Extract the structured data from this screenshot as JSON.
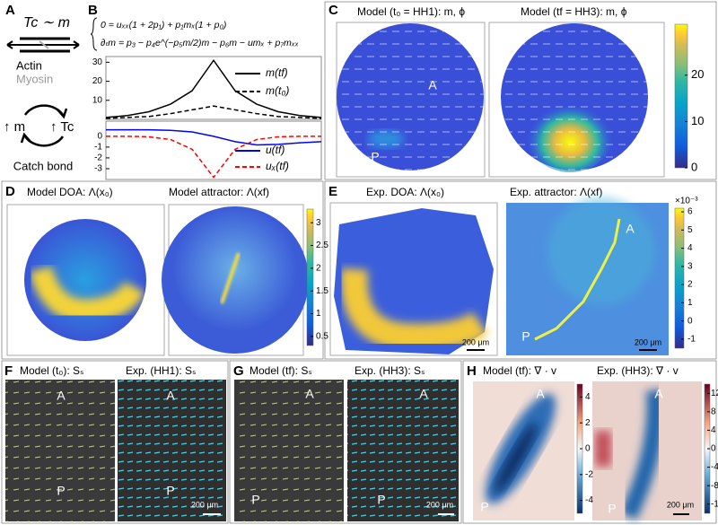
{
  "A": {
    "label": "A",
    "relation": "Tc ∼ m",
    "actin": "Actin",
    "myosin": "Myosin",
    "up_m": "↑ m",
    "up_tc": "↑ Tc",
    "catch_bond": "Catch bond"
  },
  "B": {
    "label": "B",
    "equation_1": "0 = uₓₓ(1 + 2p₁) + p₁mₓ(1 + p₀)",
    "equation_2": "∂ₜm = p₃ − p₄e^(−p₅m/2)m − p₆m − umₓ + p₇mₓₓ",
    "plots": [
      {
        "x": [
          0,
          0.1,
          0.2,
          0.3,
          0.4,
          0.5,
          0.6,
          0.7,
          0.8,
          0.9,
          1
        ],
        "ylim": [
          0,
          33
        ],
        "yticks": [
          10,
          20,
          30
        ],
        "series": [
          {
            "name": "m(tf)",
            "color": "#000000",
            "dash": false,
            "values": [
              1,
              2,
              4,
              8,
              15,
              31,
              15,
              8,
              4,
              2,
              1
            ]
          },
          {
            "name": "m(t₀)",
            "color": "#000000",
            "dash": true,
            "values": [
              0.5,
              1,
              1.5,
              3,
              5,
              7,
              5,
              3,
              1.5,
              1,
              0.5
            ]
          }
        ]
      },
      {
        "x": [
          0,
          0.1,
          0.2,
          0.3,
          0.4,
          0.5,
          0.6,
          0.7,
          0.8,
          0.9,
          1
        ],
        "ylim": [
          -4,
          1.4
        ],
        "yticks": [
          0,
          -1,
          -2,
          -3
        ],
        "series": [
          {
            "name": "u(tf)",
            "color": "#0000ff",
            "dash": false,
            "values": [
              0.6,
              0.6,
              0.6,
              0.55,
              0.4,
              0,
              -0.5,
              -0.8,
              -0.75,
              -0.6,
              -0.5
            ]
          },
          {
            "name": "uₓ(tf)",
            "color": "#ff0000",
            "dash": true,
            "values": [
              0,
              0,
              -0.05,
              -0.3,
              -1.2,
              -3.8,
              -1.2,
              -0.3,
              -0.05,
              0,
              0
            ]
          }
        ]
      }
    ]
  },
  "C": {
    "label": "C",
    "title_1": "Model (t₀ = HH1): m, ϕ",
    "title_2": "Model (tf = HH3): m, ϕ",
    "marker_A": "A",
    "marker_P": "P",
    "colorbar": {
      "ylim": [
        0,
        31
      ],
      "yticks": [
        0,
        10,
        20
      ]
    }
  },
  "D": {
    "label": "D",
    "title_1": "Model DOA: Λ(x₀)",
    "title_2": "Model attractor: Λ(xf)",
    "colorbar": {
      "ylim": [
        0.3,
        3.3
      ],
      "yticks": [
        0.5,
        1,
        1.5,
        2,
        2.5,
        3
      ]
    }
  },
  "E": {
    "label": "E",
    "title_1": "Exp. DOA: Λ(x₀)",
    "title_2": "Exp. attractor: Λ(xf)",
    "scale_1": "200 μm",
    "scale_2": "200 μm",
    "marker_A": "A",
    "marker_P": "P",
    "colorbar": {
      "ylim": [
        -1.5,
        6.2
      ],
      "yticks": [
        -1,
        0,
        1,
        2,
        3,
        4,
        5,
        6
      ],
      "multiplier": "×10⁻³"
    }
  },
  "F": {
    "label": "F",
    "title_1": "Model (t₀): Sₛ",
    "title_2": "Exp. (HH1): Sₛ",
    "marker_A_1": "A",
    "marker_P_1": "P",
    "marker_A_2": "A",
    "marker_P_2": "P",
    "scale": "200 μm"
  },
  "G": {
    "label": "G",
    "title_1": "Model (tf): Sₛ",
    "title_2": "Exp. (HH3): Sₛ",
    "marker_A_1": "A",
    "marker_P_1": "P",
    "marker_A_2": "A",
    "marker_P_2": "P",
    "scale": "200 μm"
  },
  "H": {
    "label": "H",
    "title_1": "Model (tf): ∇ · v",
    "title_2": "Exp. (HH3): ∇ · v",
    "marker_A_1": "A",
    "marker_P_1": "P",
    "marker_A_2": "A",
    "marker_P_2": "P",
    "scale": "200 μm",
    "colorbar_1": {
      "ylim": [
        -5,
        5
      ],
      "yticks": [
        4,
        2,
        0,
        -2,
        -4
      ]
    },
    "colorbar_2": {
      "ylim": [
        -14,
        14
      ],
      "yticks": [
        12,
        8,
        4,
        0,
        -4,
        -8,
        -12
      ]
    }
  }
}
